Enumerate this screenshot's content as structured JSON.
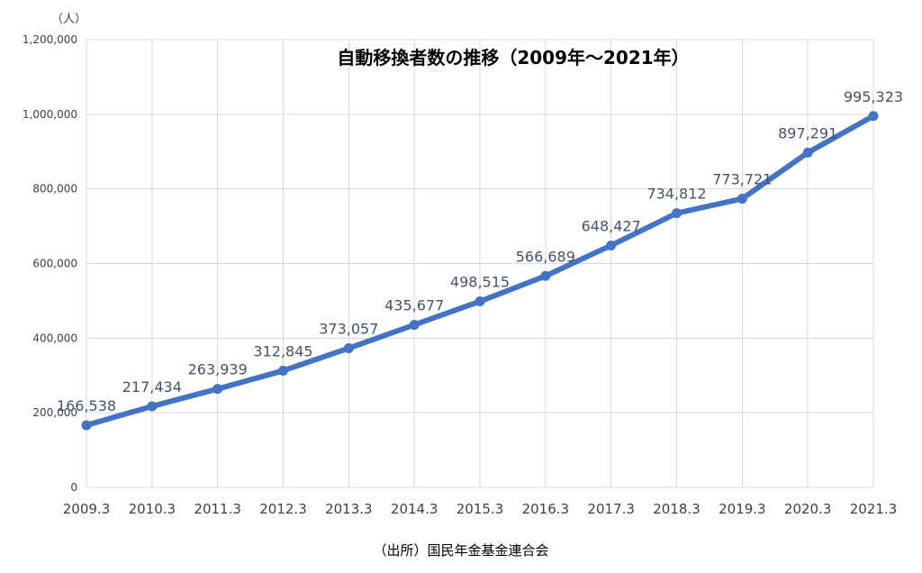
{
  "chart_data": {
    "type": "line",
    "title": "自動移換者数の推移（2009年～2021年）",
    "unit_label": "（人）",
    "source_label": "（出所）国民年金基金連合会",
    "categories": [
      "2009.3",
      "2010.3",
      "2011.3",
      "2012.3",
      "2013.3",
      "2014.3",
      "2015.3",
      "2016.3",
      "2017.3",
      "2018.3",
      "2019.3",
      "2020.3",
      "2021.3"
    ],
    "series": [
      {
        "values": [
          166538,
          217434,
          263939,
          312845,
          373057,
          435677,
          498515,
          566689,
          648427,
          734812,
          773721,
          897291,
          995323
        ],
        "data_labels": [
          "166,538",
          "217,434",
          "263,939",
          "312,845",
          "373,057",
          "435,677",
          "498,515",
          "566,689",
          "648,427",
          "734,812",
          "773,721",
          "897,291",
          "995,323"
        ],
        "color": "#4472c4"
      }
    ],
    "yticks": [
      0,
      200000,
      400000,
      600000,
      800000,
      1000000,
      1200000
    ],
    "ytick_labels": [
      "0",
      "200,000",
      "400,000",
      "600,000",
      "800,000",
      "1,000,000",
      "1,200,000"
    ],
    "ylim": [
      0,
      1200000
    ],
    "grid": true,
    "legend": "none"
  }
}
